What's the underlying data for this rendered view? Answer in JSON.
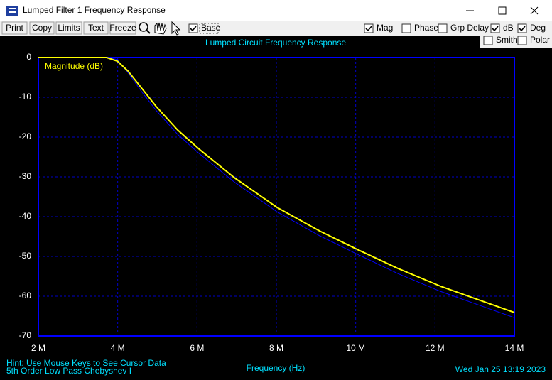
{
  "window": {
    "title": "Lumped Filter 1 Frequency Response"
  },
  "toolbar": {
    "buttons": [
      "Print",
      "Copy",
      "Limits",
      "Text",
      "Freeze"
    ],
    "checkboxes": [
      {
        "label": "Base",
        "checked": true
      },
      {
        "label": "Mag",
        "checked": true
      },
      {
        "label": "Phase",
        "checked": false
      },
      {
        "label": "Grp Delay",
        "checked": false
      },
      {
        "label": "dB",
        "checked": true
      },
      {
        "label": "Deg",
        "checked": true
      },
      {
        "label": "Smith",
        "checked": false
      },
      {
        "label": "Polar",
        "checked": false
      }
    ]
  },
  "chart_data": {
    "type": "line",
    "title": "Lumped Circuit Frequency Response",
    "xlabel": "Frequency (Hz)",
    "x": [
      2,
      3.72,
      3.99,
      4.26,
      4.62,
      4.97,
      5.51,
      6.05,
      6.94,
      8.02,
      9.09,
      9.99,
      11.06,
      12.14,
      13.21,
      14
    ],
    "series": [
      {
        "name": "Magnitude (dB)",
        "color": "#ffff00",
        "values": [
          0,
          0,
          -0.9,
          -3.4,
          -7.9,
          -12.3,
          -18.2,
          -23,
          -30.2,
          -37.7,
          -43.6,
          -48,
          -53,
          -57.5,
          -61.3,
          -64.1
        ]
      },
      {
        "color": "#0000ff",
        "values": [
          0,
          0,
          -0.5,
          -3.8,
          -8.8,
          -13.3,
          -19.3,
          -24.1,
          -31.3,
          -38.8,
          -44.8,
          -49.2,
          -54.3,
          -58.8,
          -62.6,
          -65.4
        ]
      }
    ],
    "xlim": [
      2,
      14
    ],
    "xticks": [
      {
        "value": 2,
        "label": "2 M"
      },
      {
        "value": 4,
        "label": "4 M"
      },
      {
        "value": 6,
        "label": "6 M"
      },
      {
        "value": 8,
        "label": "8 M"
      },
      {
        "value": 10,
        "label": "10 M"
      },
      {
        "value": 12,
        "label": "12 M"
      },
      {
        "value": 14,
        "label": "14 M"
      }
    ],
    "ylim": [
      -70,
      0
    ],
    "yticks": [
      0,
      -10,
      -20,
      -30,
      -40,
      -50,
      -60,
      -70
    ],
    "grid": true
  },
  "footer": {
    "hint": "Hint: Use Mouse Keys to See Cursor Data",
    "description": "5th Order Low Pass Chebyshev I",
    "timestamp": "Wed Jan 25 13:19 2023"
  }
}
